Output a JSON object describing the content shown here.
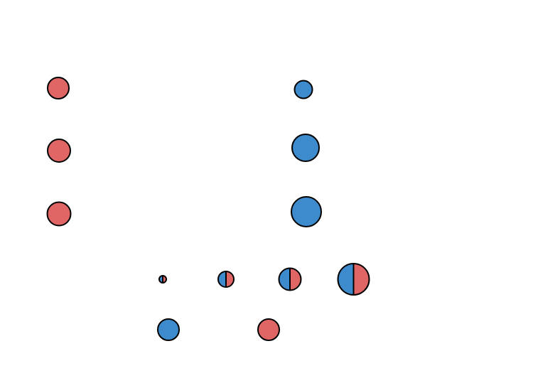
{
  "colors": {
    "red": "#e06666",
    "blue": "#3d8bcc",
    "outline": "#000000",
    "background": "#ffffff"
  },
  "groups": {
    "left_column": {
      "color": "red",
      "count": 3
    },
    "right_column": {
      "color": "blue",
      "count": 3,
      "sizes_increasing": true
    },
    "half_split_legend": {
      "left_color": "blue",
      "right_color": "red",
      "count": 4,
      "sizes_increasing": true
    },
    "color_key": [
      "blue",
      "red"
    ]
  }
}
